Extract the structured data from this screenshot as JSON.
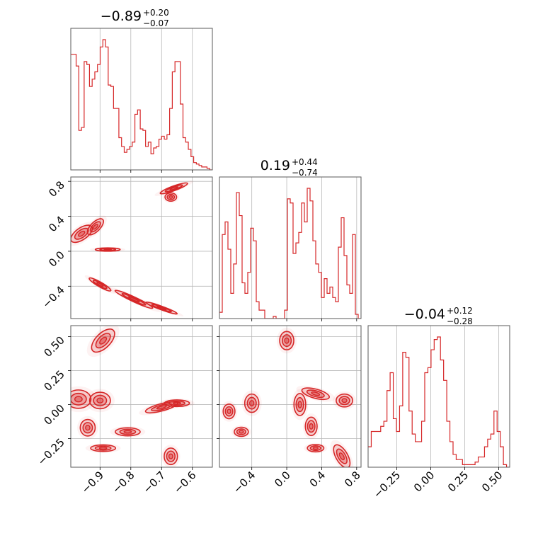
{
  "chart_data": {
    "type": "corner",
    "color": "#d62728",
    "grid": true,
    "parameters": [
      {
        "median": "−0.89",
        "plus": "+0.20",
        "minus": "−0.07",
        "range": [
          -0.995,
          -0.535
        ]
      },
      {
        "median": "0.19",
        "plus": "+0.44",
        "minus": "−0.74",
        "range": [
          -0.77,
          0.85
        ]
      },
      {
        "median": "−0.04",
        "plus": "+0.12",
        "minus": "−0.28",
        "range": [
          -0.46,
          0.58
        ]
      }
    ],
    "ticks": {
      "p1": {
        "values": [
          -0.9,
          -0.8,
          -0.7,
          -0.6
        ],
        "labels": [
          "−0.9",
          "−0.8",
          "−0.7",
          "−0.6"
        ]
      },
      "p2": {
        "values": [
          -0.4,
          0.0,
          0.4,
          0.8
        ],
        "labels": [
          "−0.4",
          "0.0",
          "0.4",
          "0.8"
        ]
      },
      "p3": {
        "values": [
          -0.25,
          0.0,
          0.25,
          0.5
        ],
        "labels": [
          "−0.25",
          "0.00",
          "0.25",
          "0.50"
        ]
      }
    },
    "histograms": [
      {
        "parameter": 1,
        "edges": [
          -0.995,
          -0.535
        ],
        "counts": [
          79,
          79,
          71,
          27,
          29,
          74,
          72,
          57,
          62,
          67,
          72,
          84,
          89,
          84,
          58,
          57,
          42,
          42,
          22,
          16,
          12,
          14,
          16,
          19,
          38,
          41,
          28,
          27,
          16,
          19,
          11,
          15,
          16,
          21,
          23,
          21,
          24,
          42,
          67,
          74,
          74,
          45,
          22,
          19,
          14,
          9,
          5,
          4,
          3,
          2,
          2,
          1,
          0
        ]
      },
      {
        "parameter": 2,
        "edges": [
          -0.77,
          0.85
        ],
        "counts": [
          3,
          40,
          46,
          33,
          12,
          26,
          60,
          49,
          17,
          12,
          22,
          43,
          37,
          8,
          4,
          4,
          0,
          0,
          0,
          1,
          0,
          0,
          0,
          4,
          57,
          55,
          31,
          36,
          41,
          55,
          46,
          62,
          56,
          37,
          26,
          22,
          10,
          19,
          12,
          15,
          10,
          8,
          34,
          48,
          30,
          16,
          12,
          40,
          2,
          0
        ]
      },
      {
        "parameter": 3,
        "edges": [
          -0.46,
          0.58
        ],
        "counts": [
          8,
          14,
          14,
          14,
          16,
          18,
          30,
          37,
          19,
          14,
          24,
          45,
          43,
          22,
          13,
          10,
          10,
          18,
          37,
          39,
          46,
          50,
          51,
          42,
          34,
          18,
          10,
          5,
          3,
          3,
          1,
          1,
          1,
          1,
          2,
          4,
          4,
          8,
          11,
          13,
          22,
          14,
          8,
          1,
          0
        ]
      }
    ],
    "contours_2d": [
      {
        "x_param": 1,
        "y_param": 2,
        "clusters": [
          {
            "x": -0.96,
            "y": 0.2,
            "sx": 0.03,
            "sy": 0.05,
            "angle": -35
          },
          {
            "x": -0.915,
            "y": 0.28,
            "sx": 0.025,
            "sy": 0.04,
            "angle": -45
          },
          {
            "x": -0.875,
            "y": 0.02,
            "sx": 0.03,
            "sy": 0.014,
            "angle": 0
          },
          {
            "x": -0.67,
            "y": 0.62,
            "sx": 0.014,
            "sy": 0.035,
            "angle": 0
          },
          {
            "x": -0.66,
            "y": 0.72,
            "sx": 0.035,
            "sy": 0.02,
            "angle": -20
          },
          {
            "x": -0.9,
            "y": -0.38,
            "sx": 0.03,
            "sy": 0.02,
            "angle": 30
          },
          {
            "x": -0.79,
            "y": -0.55,
            "sx": 0.05,
            "sy": 0.02,
            "angle": 25
          },
          {
            "x": -0.7,
            "y": -0.65,
            "sx": 0.04,
            "sy": 0.015,
            "angle": 20
          }
        ]
      },
      {
        "x_param": 1,
        "y_param": 3,
        "clusters": [
          {
            "x": -0.89,
            "y": 0.47,
            "sx": 0.035,
            "sy": 0.04,
            "angle": -45
          },
          {
            "x": -0.97,
            "y": 0.04,
            "sx": 0.03,
            "sy": 0.05,
            "angle": 0
          },
          {
            "x": -0.9,
            "y": 0.03,
            "sx": 0.025,
            "sy": 0.045,
            "angle": 0
          },
          {
            "x": -0.94,
            "y": -0.17,
            "sx": 0.018,
            "sy": 0.045,
            "angle": 0
          },
          {
            "x": -0.89,
            "y": -0.32,
            "sx": 0.03,
            "sy": 0.018,
            "angle": 0
          },
          {
            "x": -0.81,
            "y": -0.2,
            "sx": 0.03,
            "sy": 0.022,
            "angle": 0
          },
          {
            "x": -0.7,
            "y": -0.02,
            "sx": 0.04,
            "sy": 0.02,
            "angle": -15
          },
          {
            "x": -0.65,
            "y": 0.01,
            "sx": 0.03,
            "sy": 0.018,
            "angle": 0
          },
          {
            "x": -0.67,
            "y": -0.38,
            "sx": 0.016,
            "sy": 0.045,
            "angle": 0
          }
        ]
      },
      {
        "x_param": 2,
        "y_param": 3,
        "clusters": [
          {
            "x": 0.0,
            "y": 0.47,
            "sx": 0.06,
            "sy": 0.05,
            "angle": 0
          },
          {
            "x": -0.66,
            "y": -0.05,
            "sx": 0.05,
            "sy": 0.04,
            "angle": 0
          },
          {
            "x": -0.4,
            "y": 0.01,
            "sx": 0.06,
            "sy": 0.05,
            "angle": 0
          },
          {
            "x": -0.52,
            "y": -0.2,
            "sx": 0.06,
            "sy": 0.025,
            "angle": 0
          },
          {
            "x": 0.15,
            "y": 0.0,
            "sx": 0.05,
            "sy": 0.06,
            "angle": 0
          },
          {
            "x": 0.33,
            "y": 0.08,
            "sx": 0.12,
            "sy": 0.025,
            "angle": 15
          },
          {
            "x": 0.28,
            "y": -0.16,
            "sx": 0.05,
            "sy": 0.05,
            "angle": 0
          },
          {
            "x": 0.33,
            "y": -0.32,
            "sx": 0.07,
            "sy": 0.02,
            "angle": 0
          },
          {
            "x": 0.66,
            "y": 0.03,
            "sx": 0.07,
            "sy": 0.035,
            "angle": 0
          },
          {
            "x": 0.63,
            "y": -0.38,
            "sx": 0.05,
            "sy": 0.07,
            "angle": -30
          }
        ]
      }
    ]
  }
}
